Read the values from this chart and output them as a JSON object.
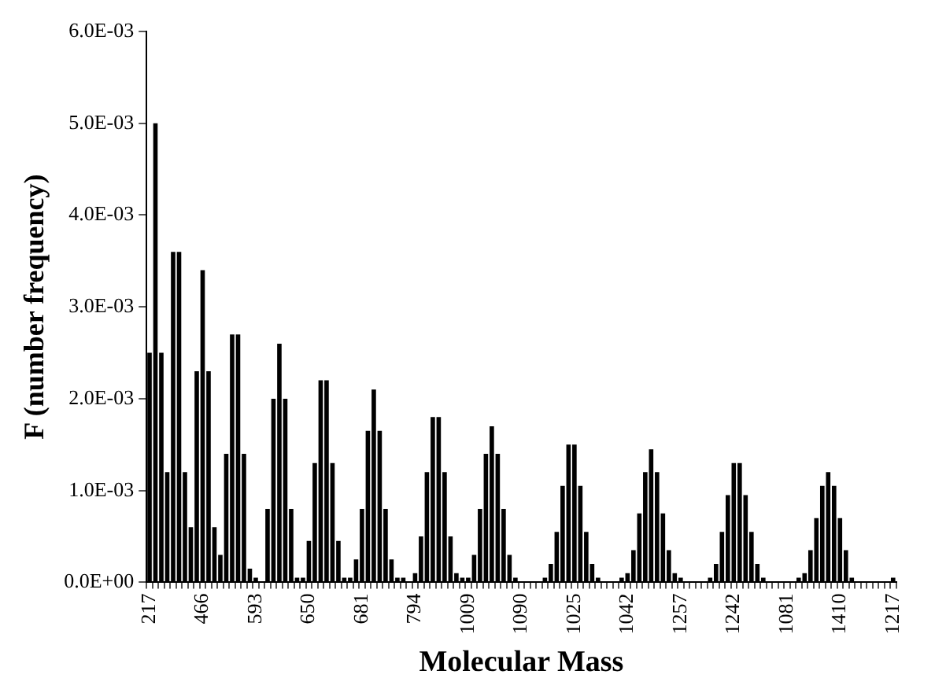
{
  "chart_data": {
    "type": "bar",
    "xlabel": "Molecular Mass",
    "ylabel": "F (number frequency)",
    "categories": [
      "217",
      null,
      null,
      null,
      null,
      null,
      null,
      null,
      null,
      "466",
      null,
      null,
      null,
      null,
      null,
      null,
      null,
      null,
      "593",
      null,
      null,
      null,
      null,
      null,
      null,
      null,
      null,
      "650",
      null,
      null,
      null,
      null,
      null,
      null,
      null,
      null,
      "681",
      null,
      null,
      null,
      null,
      null,
      null,
      null,
      null,
      "794",
      null,
      null,
      null,
      null,
      null,
      null,
      null,
      null,
      "1009",
      null,
      null,
      null,
      null,
      null,
      null,
      null,
      null,
      "1090",
      null,
      null,
      null,
      null,
      null,
      null,
      null,
      null,
      "1025",
      null,
      null,
      null,
      null,
      null,
      null,
      null,
      null,
      "1042",
      null,
      null,
      null,
      null,
      null,
      null,
      null,
      null,
      "1257",
      null,
      null,
      null,
      null,
      null,
      null,
      null,
      null,
      "1242",
      null,
      null,
      null,
      null,
      null,
      null,
      null,
      null,
      "1081",
      null,
      null,
      null,
      null,
      null,
      null,
      null,
      null,
      "1410",
      null,
      null,
      null,
      null,
      null,
      null,
      null,
      null,
      "1217"
    ],
    "values": [
      0.0025,
      0.005,
      0.0025,
      0.0012,
      0.0036,
      0.0036,
      0.0012,
      0.0006,
      0.0023,
      0.0034,
      0.0023,
      0.0006,
      0.0003,
      0.0014,
      0.0027,
      0.0027,
      0.0014,
      0.00015,
      5e-05,
      0,
      0.0008,
      0.002,
      0.0026,
      0.002,
      0.0008,
      5e-05,
      5e-05,
      0.00045,
      0.0013,
      0.0022,
      0.0022,
      0.0013,
      0.00045,
      5e-05,
      5e-05,
      0.00025,
      0.0008,
      0.00165,
      0.0021,
      0.00165,
      0.0008,
      0.00025,
      5e-05,
      5e-05,
      0,
      0.0001,
      0.0005,
      0.0012,
      0.0018,
      0.0018,
      0.0012,
      0.0005,
      0.0001,
      5e-05,
      5e-05,
      0.0003,
      0.0008,
      0.0014,
      0.0017,
      0.0014,
      0.0008,
      0.0003,
      5e-05,
      0,
      0,
      0,
      0,
      5e-05,
      0.0002,
      0.00055,
      0.00105,
      0.0015,
      0.0015,
      0.00105,
      0.00055,
      0.0002,
      5e-05,
      0,
      0,
      0,
      5e-05,
      0.0001,
      0.00035,
      0.00075,
      0.0012,
      0.00145,
      0.0012,
      0.00075,
      0.00035,
      0.0001,
      5e-05,
      0,
      0,
      0,
      0,
      5e-05,
      0.0002,
      0.00055,
      0.00095,
      0.0013,
      0.0013,
      0.00095,
      0.00055,
      0.0002,
      5e-05,
      0,
      0,
      0,
      0,
      0,
      5e-05,
      0.0001,
      0.00035,
      0.0007,
      0.00105,
      0.0012,
      0.00105,
      0.0007,
      0.00035,
      5e-05,
      0,
      0,
      0,
      0,
      0,
      0,
      5e-05
    ],
    "color": "#000000",
    "ylim": [
      0,
      0.006
    ],
    "yticks": [
      {
        "value": 0,
        "label": "0.0E+00"
      },
      {
        "value": 0.001,
        "label": "1.0E-03"
      },
      {
        "value": 0.002,
        "label": "2.0E-03"
      },
      {
        "value": 0.003,
        "label": "3.0E-03"
      },
      {
        "value": 0.004,
        "label": "4.0E-03"
      },
      {
        "value": 0.005,
        "label": "5.0E-03"
      },
      {
        "value": 0.006,
        "label": "6.0E-03"
      }
    ],
    "legend": false
  }
}
